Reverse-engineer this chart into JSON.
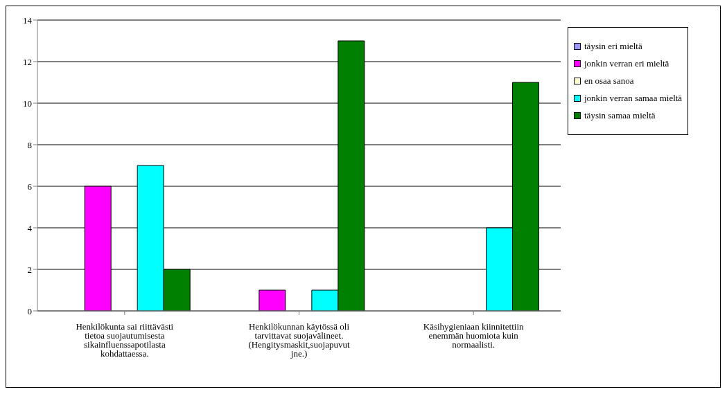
{
  "chart_data": {
    "type": "bar",
    "categories": [
      "Henkilökunta sai riittävästi tietoa suojautumisesta sikainfluenssapotilasta kohdattaessa.",
      "Henkilökunnan käytössä oli tarvittavat suojavälineet. (Hengitysmaskit,suojapuvut jne.)",
      "Käsihygieniaan kiinnitettiin enemmän huomiota kuin normaalisti."
    ],
    "series": [
      {
        "name": "täysin eri mieltä",
        "color": "#9999ff",
        "values": [
          0,
          0,
          0
        ]
      },
      {
        "name": "jonkin verran eri mieltä",
        "color": "#ff00ff",
        "values": [
          6,
          1,
          0
        ]
      },
      {
        "name": "en osaa sanoa",
        "color": "#ffffcc",
        "values": [
          0,
          0,
          0
        ]
      },
      {
        "name": "jonkin verran samaa mieltä",
        "color": "#00ffff",
        "values": [
          7,
          1,
          4
        ]
      },
      {
        "name": "täysin samaa mieltä",
        "color": "#008000",
        "values": [
          2,
          13,
          11
        ]
      }
    ],
    "ylim": [
      0,
      14
    ],
    "yticks": [
      0,
      2,
      4,
      6,
      8,
      10,
      12,
      14
    ],
    "grid": "y",
    "legend": "right"
  }
}
